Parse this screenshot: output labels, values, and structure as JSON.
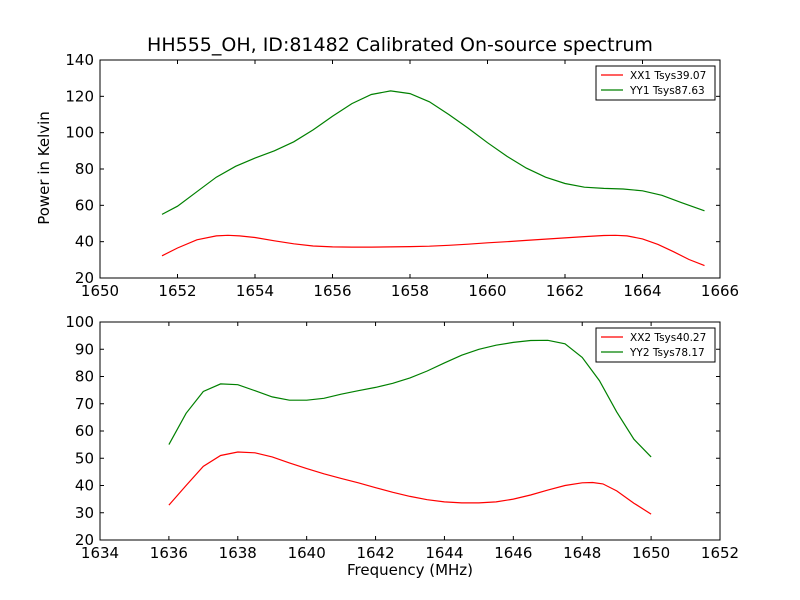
{
  "chart_data": [
    {
      "type": "line",
      "title": "HH555_OH, ID:81482 Calibrated On-source spectrum",
      "ylabel": "Power in Kelvin",
      "xlim": [
        1650,
        1666
      ],
      "ylim": [
        20,
        140
      ],
      "xticks": [
        "1650",
        "1652",
        "1654",
        "1656",
        "1658",
        "1660",
        "1662",
        "1664",
        "1666"
      ],
      "yticks": [
        "20",
        "40",
        "60",
        "80",
        "100",
        "120",
        "140"
      ],
      "legend_position": "top-right",
      "grid": false,
      "series": [
        {
          "name": "XX1 Tsys39.07",
          "color": "#ff0000",
          "x": [
            1651.6,
            1652.0,
            1652.5,
            1653.0,
            1653.3,
            1653.6,
            1654.0,
            1654.5,
            1655.0,
            1655.5,
            1656.0,
            1656.5,
            1657.0,
            1657.5,
            1658.0,
            1658.5,
            1659.0,
            1659.5,
            1660.0,
            1660.5,
            1661.0,
            1661.5,
            1662.0,
            1662.5,
            1663.0,
            1663.3,
            1663.6,
            1664.0,
            1664.4,
            1664.8,
            1665.2,
            1665.6
          ],
          "y": [
            32.2,
            36.5,
            41.0,
            43.2,
            43.5,
            43.2,
            42.3,
            40.5,
            38.8,
            37.6,
            37.1,
            37.0,
            37.0,
            37.1,
            37.3,
            37.5,
            38.0,
            38.6,
            39.4,
            40.0,
            40.7,
            41.4,
            42.1,
            42.8,
            43.4,
            43.5,
            43.2,
            41.5,
            38.5,
            34.5,
            30.2,
            26.8
          ]
        },
        {
          "name": "YY1 Tsys87.63",
          "color": "#008000",
          "x": [
            1651.6,
            1652.0,
            1652.5,
            1653.0,
            1653.5,
            1654.0,
            1654.5,
            1655.0,
            1655.5,
            1656.0,
            1656.5,
            1657.0,
            1657.5,
            1658.0,
            1658.5,
            1659.0,
            1659.5,
            1660.0,
            1660.5,
            1661.0,
            1661.5,
            1662.0,
            1662.5,
            1663.0,
            1663.5,
            1664.0,
            1664.5,
            1665.0,
            1665.6
          ],
          "y": [
            55.0,
            59.5,
            67.5,
            75.5,
            81.5,
            86.0,
            90.0,
            95.0,
            101.5,
            109.0,
            116.0,
            121.0,
            123.0,
            121.5,
            117.0,
            110.0,
            102.5,
            94.5,
            87.0,
            80.5,
            75.5,
            72.0,
            70.0,
            69.3,
            69.0,
            68.0,
            65.5,
            61.5,
            57.0
          ]
        }
      ]
    },
    {
      "type": "line",
      "xlabel": "Frequency (MHz)",
      "xlim": [
        1634,
        1652
      ],
      "ylim": [
        20,
        100
      ],
      "xticks": [
        "1634",
        "1636",
        "1638",
        "1640",
        "1642",
        "1644",
        "1646",
        "1648",
        "1650",
        "1652"
      ],
      "yticks": [
        "20",
        "30",
        "40",
        "50",
        "60",
        "70",
        "80",
        "90",
        "100"
      ],
      "legend_position": "top-right",
      "grid": false,
      "series": [
        {
          "name": "XX2 Tsys40.27",
          "color": "#ff0000",
          "x": [
            1636.0,
            1636.5,
            1637.0,
            1637.5,
            1638.0,
            1638.5,
            1639.0,
            1639.5,
            1640.0,
            1640.5,
            1641.0,
            1641.5,
            1642.0,
            1642.5,
            1643.0,
            1643.5,
            1644.0,
            1644.5,
            1645.0,
            1645.5,
            1646.0,
            1646.5,
            1647.0,
            1647.5,
            1648.0,
            1648.3,
            1648.6,
            1649.0,
            1649.5,
            1650.0
          ],
          "y": [
            32.8,
            40.0,
            47.0,
            51.0,
            52.3,
            52.0,
            50.5,
            48.3,
            46.2,
            44.3,
            42.6,
            41.0,
            39.2,
            37.5,
            36.0,
            34.8,
            34.0,
            33.6,
            33.6,
            34.0,
            35.0,
            36.5,
            38.3,
            40.0,
            41.0,
            41.1,
            40.6,
            38.0,
            33.5,
            29.5
          ]
        },
        {
          "name": "YY2 Tsys78.17",
          "color": "#008000",
          "x": [
            1636.0,
            1636.5,
            1637.0,
            1637.5,
            1638.0,
            1638.5,
            1639.0,
            1639.5,
            1640.0,
            1640.5,
            1641.0,
            1641.5,
            1642.0,
            1642.5,
            1643.0,
            1643.5,
            1644.0,
            1644.5,
            1645.0,
            1645.5,
            1646.0,
            1646.5,
            1647.0,
            1647.5,
            1648.0,
            1648.5,
            1649.0,
            1649.5,
            1650.0
          ],
          "y": [
            55.0,
            66.5,
            74.5,
            77.3,
            77.0,
            74.8,
            72.5,
            71.3,
            71.3,
            72.0,
            73.5,
            74.8,
            76.0,
            77.5,
            79.5,
            82.0,
            85.0,
            87.8,
            90.0,
            91.5,
            92.5,
            93.2,
            93.3,
            92.0,
            87.0,
            78.5,
            67.0,
            57.0,
            50.5
          ]
        }
      ]
    }
  ]
}
